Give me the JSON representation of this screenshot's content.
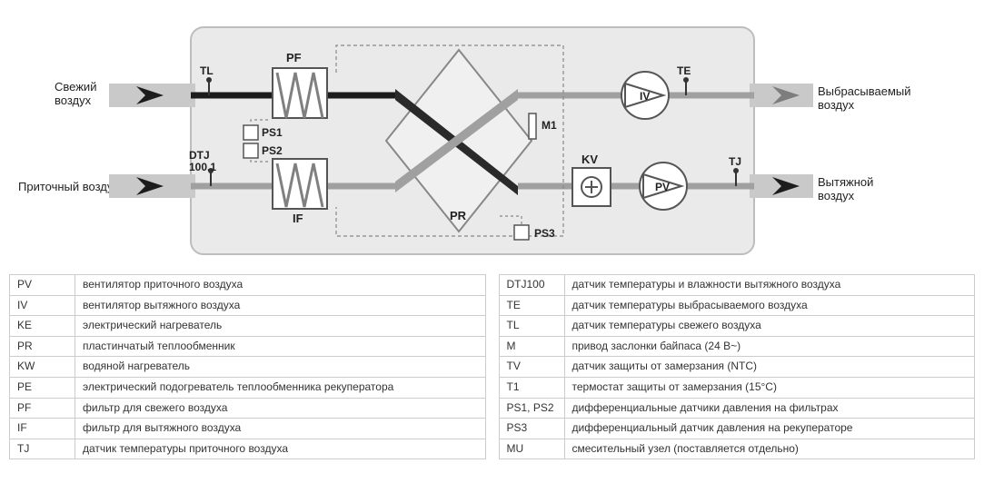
{
  "diagram": {
    "type": "flowchart",
    "background": "#ffffff",
    "unit_box": {
      "fill": "#eaeaea",
      "stroke": "#bdbdbd",
      "rx": 14
    },
    "air_labels": {
      "fresh_in": "Свежий\nвоздух",
      "supply_in": "Приточный воздух",
      "exhaust_out": "Выбрасываемый\nвоздух",
      "extract_out": "Вытяжной\nвоздух"
    },
    "flow_colors": {
      "fresh": "#1c1c1c",
      "supply": "#a0a0a0",
      "exhaust": "#a0a0a0",
      "extract": "#a0a0a0",
      "arrow_fill": "#1c1c1c",
      "arrow_fill_grey": "#7d7d7d"
    },
    "component_labels": {
      "PF": "PF",
      "IF": "IF",
      "TL": "TL",
      "DTJ": "DTJ\n100.1",
      "PS1": "PS1",
      "PS2": "PS2",
      "PS3": "PS3",
      "PR": "PR",
      "M1": "M1",
      "KV": "KV",
      "IV": "IV",
      "PV": "PV",
      "TE": "TE",
      "TJ": "TJ"
    },
    "label_fontsize": 12,
    "label_fontweight": "bold",
    "colors": {
      "filter_hatch": "#808080",
      "filter_border": "#555555",
      "sensor_box": "#ffffff",
      "sensor_border": "#555555",
      "hx_fill": "#e0e0e0",
      "hx_stroke": "#808080",
      "hx_cross_dark": "#2a2a2a",
      "hx_cross_grey": "#a0a0a0",
      "fan_fill": "#ffffff",
      "fan_stroke": "#555555",
      "kv_fill": "#ffffff",
      "kv_stroke": "#555555",
      "dashed": "#888888"
    }
  },
  "legend_left": {
    "columns": [
      "code",
      "desc"
    ],
    "rows": [
      [
        "PV",
        "вентилятор приточного воздуха"
      ],
      [
        "IV",
        "вентилятор вытяжного воздуха"
      ],
      [
        "KE",
        "электрический нагреватель"
      ],
      [
        "PR",
        "пластинчатый теплообменник"
      ],
      [
        "KW",
        "водяной нагреватель"
      ],
      [
        "PE",
        "электрический подогреватель теплообменника рекуператора"
      ],
      [
        "PF",
        "фильтр для свежего воздуха"
      ],
      [
        "IF",
        "фильтр для вытяжного воздуха"
      ],
      [
        "TJ",
        "датчик температуры приточного воздуха"
      ]
    ]
  },
  "legend_right": {
    "columns": [
      "code",
      "desc"
    ],
    "rows": [
      [
        "DTJ100",
        "датчик температуры и влажности вытяжного воздуха"
      ],
      [
        "TE",
        "датчик температуры выбрасываемого воздуха"
      ],
      [
        "TL",
        "датчик температуры свежего воздуха"
      ],
      [
        "M",
        "привод заслонки байпаса (24 В~)"
      ],
      [
        "TV",
        "датчик защиты от замерзания (NTC)"
      ],
      [
        "T1",
        "термостат защиты от замерзания (15°C)"
      ],
      [
        "PS1, PS2",
        "дифференциальные датчики давления на фильтрах"
      ],
      [
        "PS3",
        "дифференциальный датчик давления на рекуператоре"
      ],
      [
        "MU",
        "смесительный узел (поставляется отдельно)"
      ]
    ]
  }
}
